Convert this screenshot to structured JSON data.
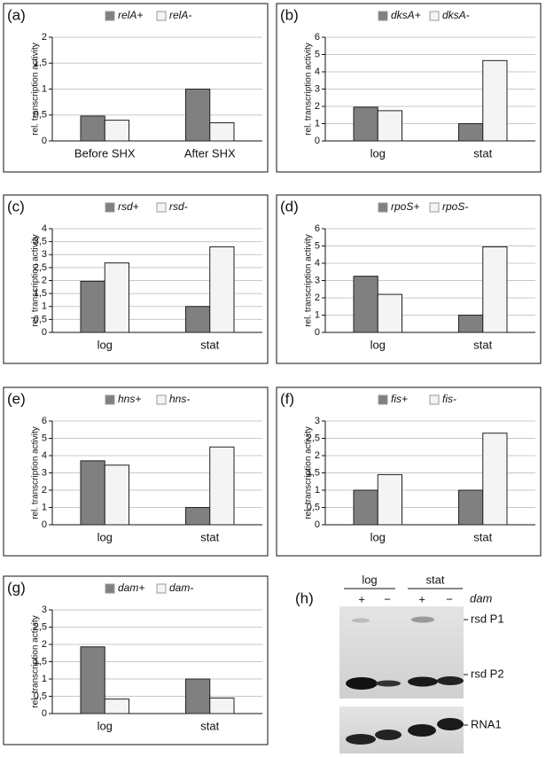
{
  "chart_data": [
    {
      "type": "bar",
      "label": "(a)",
      "ylabel": "rel. transcription activity",
      "categories": [
        "Before SHX",
        "After SHX"
      ],
      "series": [
        {
          "name": "relA+",
          "color": "#808080",
          "values": [
            0.48,
            1.0
          ]
        },
        {
          "name": "relA-",
          "color": "#f4f4f4",
          "values": [
            0.4,
            0.35
          ]
        }
      ],
      "ylim": [
        0,
        2
      ],
      "yticks": [
        0,
        {
          "value": 0.5,
          "label": "0,5"
        },
        1,
        {
          "value": 1.5,
          "label": "1,5"
        },
        2
      ]
    },
    {
      "type": "bar",
      "label": "(b)",
      "ylabel": "rel. transcription activity",
      "categories": [
        "log",
        "stat"
      ],
      "series": [
        {
          "name": "dksA+",
          "color": "#808080",
          "values": [
            1.95,
            1.0
          ]
        },
        {
          "name": "dksA-",
          "color": "#f4f4f4",
          "values": [
            1.75,
            4.65
          ]
        }
      ],
      "ylim": [
        0,
        6
      ],
      "yticks": [
        0,
        1,
        2,
        3,
        4,
        5,
        6
      ]
    },
    {
      "type": "bar",
      "label": "(c)",
      "ylabel": "rel. transcription activity",
      "categories": [
        "log",
        "stat"
      ],
      "series": [
        {
          "name": "rsd+",
          "color": "#808080",
          "values": [
            1.97,
            1.0
          ]
        },
        {
          "name": "rsd-",
          "color": "#f4f4f4",
          "values": [
            2.68,
            3.3
          ]
        }
      ],
      "ylim": [
        0,
        4
      ],
      "yticks": [
        0,
        {
          "value": 0.5,
          "label": "0,5"
        },
        1,
        {
          "value": 1.5,
          "label": "1,5"
        },
        2,
        {
          "value": 2.5,
          "label": "2,5"
        },
        3,
        {
          "value": 3.5,
          "label": "3,5"
        },
        4
      ]
    },
    {
      "type": "bar",
      "label": "(d)",
      "ylabel": "rel. transcription activity",
      "categories": [
        "log",
        "stat"
      ],
      "series": [
        {
          "name": "rpoS+",
          "color": "#808080",
          "values": [
            3.25,
            1.0
          ]
        },
        {
          "name": "rpoS-",
          "color": "#f4f4f4",
          "values": [
            2.2,
            4.95
          ]
        }
      ],
      "ylim": [
        0,
        6
      ],
      "yticks": [
        0,
        1,
        2,
        3,
        4,
        5,
        6
      ]
    },
    {
      "type": "bar",
      "label": "(e)",
      "ylabel": "rel. transcription activity",
      "categories": [
        "log",
        "stat"
      ],
      "series": [
        {
          "name": "hns+",
          "color": "#808080",
          "values": [
            3.7,
            1.0
          ]
        },
        {
          "name": "hns-",
          "color": "#f4f4f4",
          "values": [
            3.45,
            4.5
          ]
        }
      ],
      "ylim": [
        0,
        6
      ],
      "yticks": [
        0,
        1,
        2,
        3,
        4,
        5,
        6
      ]
    },
    {
      "type": "bar",
      "label": "(f)",
      "ylabel": "rel. transcription activity",
      "categories": [
        "log",
        "stat"
      ],
      "series": [
        {
          "name": "fis+",
          "color": "#808080",
          "values": [
            1.0,
            1.0
          ]
        },
        {
          "name": "fis-",
          "color": "#f4f4f4",
          "values": [
            1.45,
            2.65
          ]
        }
      ],
      "ylim": [
        0,
        3
      ],
      "yticks": [
        0,
        {
          "value": 0.5,
          "label": "0,5"
        },
        1,
        {
          "value": 1.5,
          "label": "1,5"
        },
        2,
        {
          "value": 2.5,
          "label": "2,5"
        },
        3
      ]
    },
    {
      "type": "bar",
      "label": "(g)",
      "ylabel": "rel. transcription activity",
      "categories": [
        "log",
        "stat"
      ],
      "series": [
        {
          "name": "dam+",
          "color": "#808080",
          "values": [
            1.93,
            1.0
          ]
        },
        {
          "name": "dam-",
          "color": "#f4f4f4",
          "values": [
            0.42,
            0.45
          ]
        }
      ],
      "ylim": [
        0,
        3
      ],
      "yticks": [
        0,
        {
          "value": 0.5,
          "label": "0,5"
        },
        1,
        {
          "value": 1.5,
          "label": "1,5"
        },
        2,
        {
          "value": 2.5,
          "label": "2,5"
        },
        3
      ]
    }
  ],
  "gel": {
    "label": "(h)",
    "groups": [
      "log",
      "stat"
    ],
    "factor": "dam",
    "lanes": [
      "+",
      "−",
      "+",
      "−"
    ],
    "bands": [
      "rsd P1",
      "rsd P2",
      "RNA1"
    ]
  }
}
